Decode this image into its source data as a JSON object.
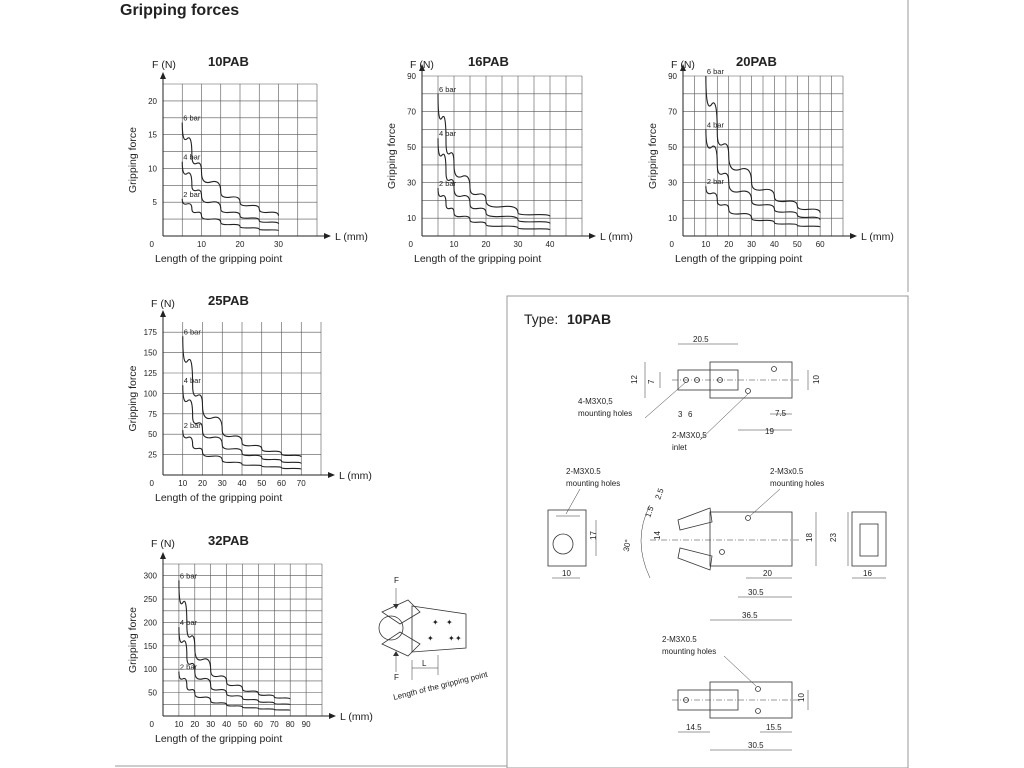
{
  "page_title": "Gripping forces",
  "diagram": {
    "caption": "Length of the gripping point",
    "force_label": "F",
    "L_label": "L"
  },
  "drawing": {
    "type_prefix": "Type:",
    "type_name": "10PAB",
    "labels": {
      "mount4": "4-M3X0,5",
      "mount4b": "mounting holes",
      "inlet": "2-M3X0,5",
      "inletb": "inlet",
      "left_holes": "2-M3X0.5",
      "left_holesb": "mounting holes",
      "right_holes": "2-M3x0.5",
      "right_holesb": "mounting holes",
      "bottom_holes": "2-M3X0.5",
      "bottom_holesb": "mounting holes"
    },
    "dims": {
      "d20_5": "20.5",
      "d12": "12",
      "d7": "7",
      "d10a": "10",
      "d3": "3",
      "d6": "6",
      "d7_5": "7.5",
      "d19": "19",
      "d2_5": "2.5",
      "d1_5": "1.5",
      "d30deg": "30°",
      "d14": "14",
      "d18": "18",
      "d17": "17",
      "d10b": "10",
      "d20": "20",
      "d30_5a": "30.5",
      "d36_5": "36.5",
      "d23": "23",
      "d16": "16",
      "d10c": "10",
      "d14_5": "14.5",
      "d15_5": "15.5",
      "d30_5b": "30.5"
    }
  },
  "chart_data": [
    {
      "type": "line",
      "title": "10PAB",
      "ylabel": "Gripping force",
      "y_unit_label": "F (N)",
      "xlabel": "Length of the gripping point",
      "x_unit_label": "L (mm)",
      "xlim": [
        0,
        40
      ],
      "ylim": [
        0,
        22.5
      ],
      "xticks": [
        10,
        20,
        30
      ],
      "yticks": [
        5,
        10,
        15,
        20
      ],
      "zero_label": "0",
      "grid_x_step": 5,
      "grid_y_step": 2.5,
      "grid": true,
      "series": [
        {
          "name": "6 bar",
          "x": [
            5,
            7.5,
            10,
            15,
            20,
            25,
            30
          ],
          "y": [
            16.8,
            12,
            9.5,
            6.5,
            5,
            4,
            3
          ]
        },
        {
          "name": "4 bar",
          "x": [
            5,
            7.5,
            10,
            15,
            20,
            25,
            30
          ],
          "y": [
            11,
            7.5,
            6,
            4,
            3,
            2.3,
            1.8
          ]
        },
        {
          "name": "2 bar",
          "x": [
            5,
            7.5,
            10,
            15,
            20,
            25,
            30
          ],
          "y": [
            5.5,
            4,
            3,
            2,
            1.4,
            1,
            0.8
          ]
        }
      ]
    },
    {
      "type": "line",
      "title": "16PAB",
      "ylabel": "Gripping force",
      "y_unit_label": "F (N)",
      "xlabel": "Length of the gripping point",
      "x_unit_label": "L (mm)",
      "xlim": [
        0,
        50
      ],
      "ylim": [
        0,
        90
      ],
      "xticks": [
        10,
        20,
        30,
        40
      ],
      "yticks": [
        10,
        30,
        50,
        70,
        90
      ],
      "zero_label": "0",
      "grid_x_step": 5,
      "grid_y_step": 10,
      "grid": true,
      "series": [
        {
          "name": "6 bar",
          "x": [
            5,
            7.5,
            10,
            15,
            20,
            30,
            40
          ],
          "y": [
            80,
            53,
            40,
            27,
            20,
            13,
            11
          ]
        },
        {
          "name": "4 bar",
          "x": [
            5,
            7.5,
            10,
            15,
            20,
            30,
            40
          ],
          "y": [
            55,
            36,
            27,
            18,
            13,
            9,
            7
          ]
        },
        {
          "name": "2 bar",
          "x": [
            5,
            7.5,
            10,
            15,
            20,
            30,
            40
          ],
          "y": [
            27,
            18,
            13,
            9,
            6.5,
            4.5,
            3.5
          ]
        }
      ]
    },
    {
      "type": "line",
      "title": "20PAB",
      "ylabel": "Gripping force",
      "y_unit_label": "F (N)",
      "xlabel": "Length of the gripping point",
      "x_unit_label": "L (mm)",
      "xlim": [
        0,
        70
      ],
      "ylim": [
        0,
        90
      ],
      "xticks": [
        10,
        20,
        30,
        40,
        50,
        60
      ],
      "yticks": [
        10,
        30,
        50,
        70,
        90
      ],
      "zero_label": "0",
      "grid_x_step": 5,
      "grid_y_step": 10,
      "grid": true,
      "series": [
        {
          "name": "6 bar",
          "x": [
            10,
            15,
            20,
            30,
            40,
            50,
            60
          ],
          "y": [
            90,
            58,
            45,
            30,
            22,
            17,
            13
          ]
        },
        {
          "name": "4 bar",
          "x": [
            10,
            15,
            20,
            30,
            40,
            50,
            60
          ],
          "y": [
            60,
            40,
            30,
            20,
            15,
            12,
            9
          ]
        },
        {
          "name": "2 bar",
          "x": [
            10,
            15,
            20,
            30,
            40,
            50,
            60
          ],
          "y": [
            28,
            20,
            15,
            10,
            7.5,
            6,
            5
          ]
        }
      ]
    },
    {
      "type": "line",
      "title": "25PAB",
      "ylabel": "Gripping force",
      "y_unit_label": "F (N)",
      "xlabel": "Length of the gripping point",
      "x_unit_label": "L (mm)",
      "xlim": [
        0,
        80
      ],
      "ylim": [
        0,
        187.5
      ],
      "xticks": [
        10,
        20,
        30,
        40,
        50,
        60,
        70
      ],
      "yticks": [
        25,
        50,
        75,
        100,
        125,
        150,
        175
      ],
      "zero_label": "0",
      "grid_x_step": 10,
      "grid_y_step": 25,
      "grid": true,
      "series": [
        {
          "name": "6 bar",
          "x": [
            10,
            15,
            20,
            30,
            40,
            50,
            60,
            70
          ],
          "y": [
            170,
            110,
            85,
            55,
            40,
            32,
            26,
            22
          ]
        },
        {
          "name": "4 bar",
          "x": [
            10,
            15,
            20,
            30,
            40,
            50,
            60,
            70
          ],
          "y": [
            110,
            72,
            55,
            37,
            27,
            21,
            17,
            14
          ]
        },
        {
          "name": "2 bar",
          "x": [
            10,
            15,
            20,
            30,
            40,
            50,
            60,
            70
          ],
          "y": [
            55,
            37,
            28,
            18,
            13,
            11,
            9,
            7
          ]
        }
      ]
    },
    {
      "type": "line",
      "title": "32PAB",
      "ylabel": "Gripping force",
      "y_unit_label": "F (N)",
      "xlabel": "Length of the gripping point",
      "x_unit_label": "L (mm)",
      "xlim": [
        0,
        100
      ],
      "ylim": [
        0,
        325
      ],
      "xticks": [
        10,
        20,
        30,
        40,
        50,
        60,
        70,
        80,
        90
      ],
      "yticks": [
        50,
        100,
        150,
        200,
        250,
        300
      ],
      "zero_label": "0",
      "grid_x_step": 10,
      "grid_y_step": 25,
      "grid": true,
      "series": [
        {
          "name": "6 bar",
          "x": [
            10,
            15,
            20,
            30,
            40,
            50,
            60,
            70,
            80
          ],
          "y": [
            290,
            195,
            145,
            97,
            73,
            58,
            48,
            41,
            36
          ]
        },
        {
          "name": "4 bar",
          "x": [
            10,
            15,
            20,
            30,
            40,
            50,
            60,
            70,
            80
          ],
          "y": [
            190,
            128,
            95,
            64,
            48,
            38,
            32,
            27,
            24
          ]
        },
        {
          "name": "2 bar",
          "x": [
            10,
            15,
            20,
            30,
            40,
            50,
            60,
            70,
            80
          ],
          "y": [
            95,
            64,
            48,
            32,
            24,
            19,
            16,
            14,
            12
          ]
        }
      ]
    }
  ]
}
